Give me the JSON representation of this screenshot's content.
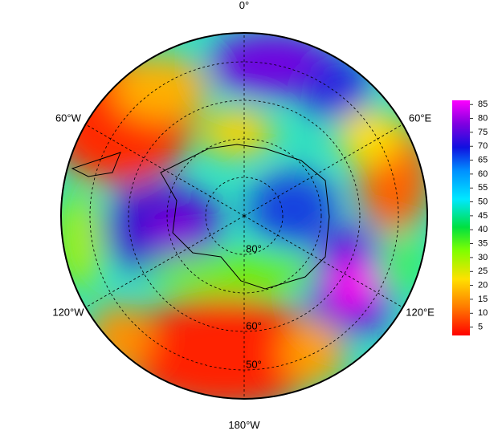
{
  "map": {
    "lon_labels": [
      {
        "value": 0,
        "label": "0°"
      },
      {
        "value": 60,
        "label": "60°E"
      },
      {
        "value": 120,
        "label": "120°E"
      },
      {
        "value": 180,
        "label": "180°W"
      },
      {
        "value": -120,
        "label": "120°W"
      },
      {
        "value": -60,
        "label": "60°W"
      }
    ],
    "lat_labels": [
      {
        "value": 80,
        "label": "80°"
      },
      {
        "value": 60,
        "label": "60°"
      },
      {
        "value": 50,
        "label": "50°"
      }
    ],
    "lat_circles": [
      80,
      70,
      60,
      50
    ],
    "colorbar": {
      "range": [
        2,
        86.5
      ],
      "ticks": [
        5,
        10,
        15,
        20,
        25,
        30,
        35,
        40,
        45,
        50,
        55,
        60,
        65,
        70,
        75,
        80,
        85
      ]
    }
  }
}
